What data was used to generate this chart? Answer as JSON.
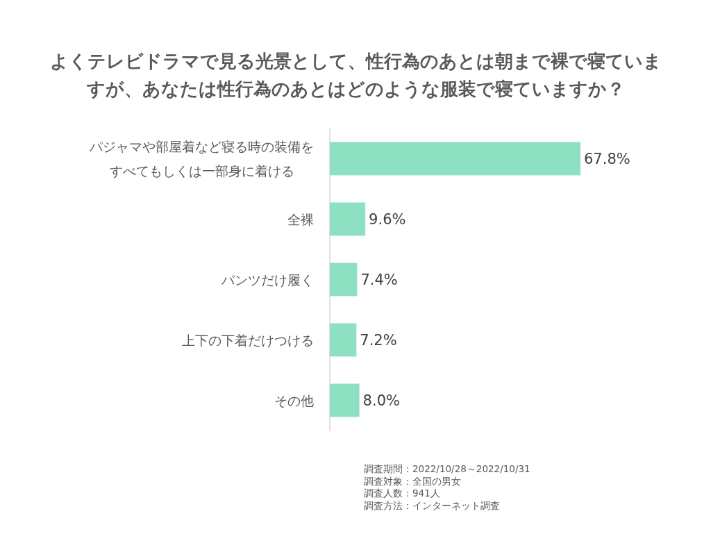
{
  "chart_data": {
    "type": "bar",
    "orientation": "horizontal",
    "title": "よくテレビドラマで見る光景として、性行為のあとは朝まで裸で寝ていますが、あなたは性行為のあとはどのような服装で寝ていますか？",
    "categories": [
      "パジャマや部屋着など寝る時の装備をすべてもしくは一部身に着ける",
      "全裸",
      "パンツだけ履く",
      "上下の下着だけつける",
      "その他"
    ],
    "values": [
      67.8,
      9.6,
      7.4,
      7.2,
      8.0
    ],
    "value_labels": [
      "67.8%",
      "9.6%",
      "7.4%",
      "7.2%",
      "8.0%"
    ],
    "color": "#8de0c2",
    "annotations": [
      "調査期間：2022/10/28～2022/10/31",
      "調査対象：全国の男女",
      "調査人数：941人",
      "調査方法：インターネット調査"
    ]
  }
}
